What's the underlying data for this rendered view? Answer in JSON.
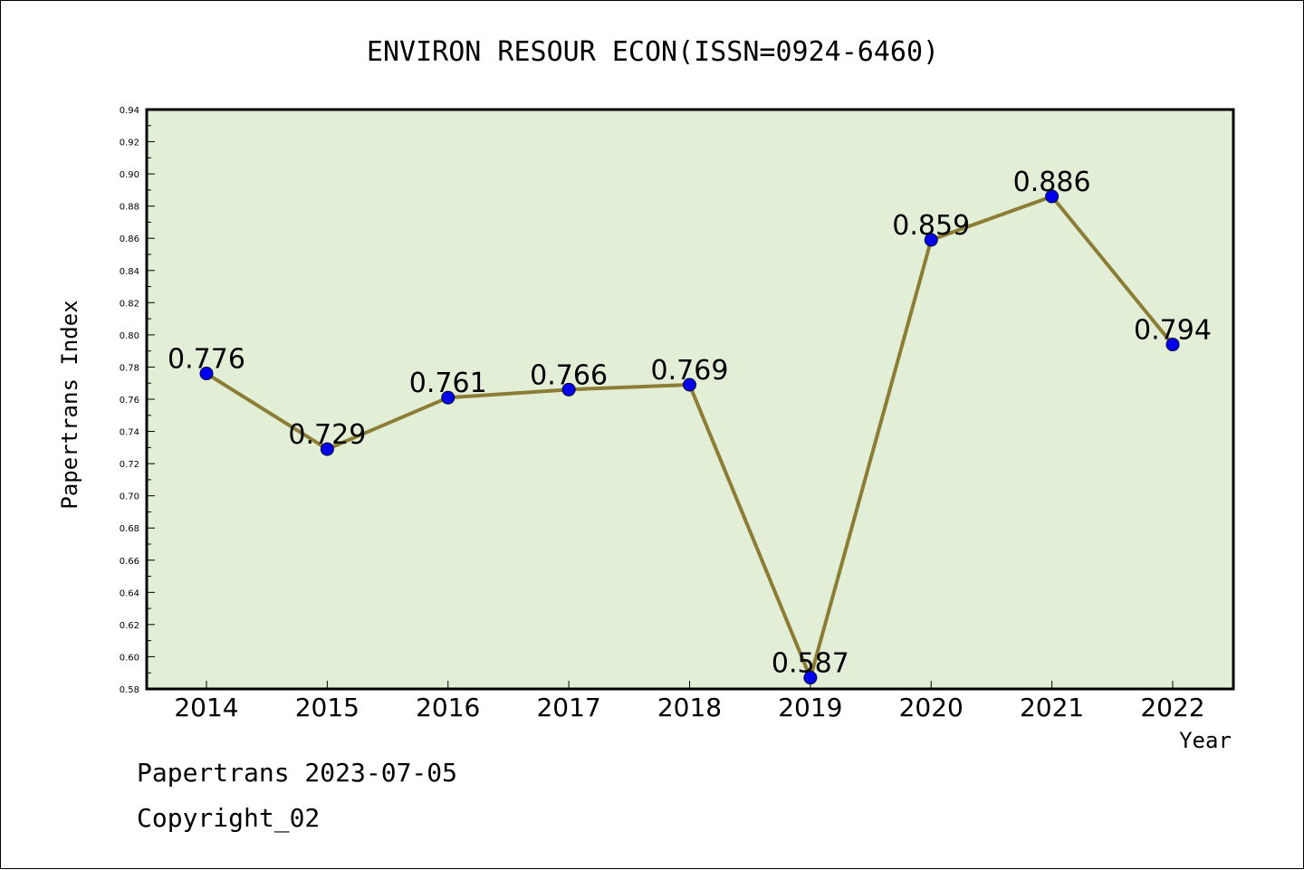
{
  "chart_data": {
    "type": "line",
    "title": "ENVIRON RESOUR ECON(ISSN=0924-6460)",
    "xlabel": "Year",
    "ylabel": "Papertrans Index",
    "categories": [
      "2014",
      "2015",
      "2016",
      "2017",
      "2018",
      "2019",
      "2020",
      "2021",
      "2022"
    ],
    "series": [
      {
        "values": [
          0.776,
          0.729,
          0.761,
          0.766,
          0.769,
          0.587,
          0.859,
          0.886,
          0.794
        ]
      }
    ],
    "data_labels": [
      "0.776",
      "0.729",
      "0.761",
      "0.766",
      "0.769",
      "0.587",
      "0.859",
      "0.886",
      "0.794"
    ],
    "ylim": [
      0.58,
      0.94
    ],
    "yticks": [
      "0.58",
      "0.60",
      "0.62",
      "0.64",
      "0.66",
      "0.68",
      "0.70",
      "0.72",
      "0.74",
      "0.76",
      "0.78",
      "0.80",
      "0.82",
      "0.84",
      "0.86",
      "0.88",
      "0.90",
      "0.92",
      "0.94"
    ],
    "grid": false,
    "colors": {
      "plot_background": "#e2efd6",
      "line": "#8b7d35",
      "marker": "#0000ee"
    }
  },
  "footer": {
    "line1": "Papertrans 2023-07-05",
    "line2": "Copyright_02"
  }
}
